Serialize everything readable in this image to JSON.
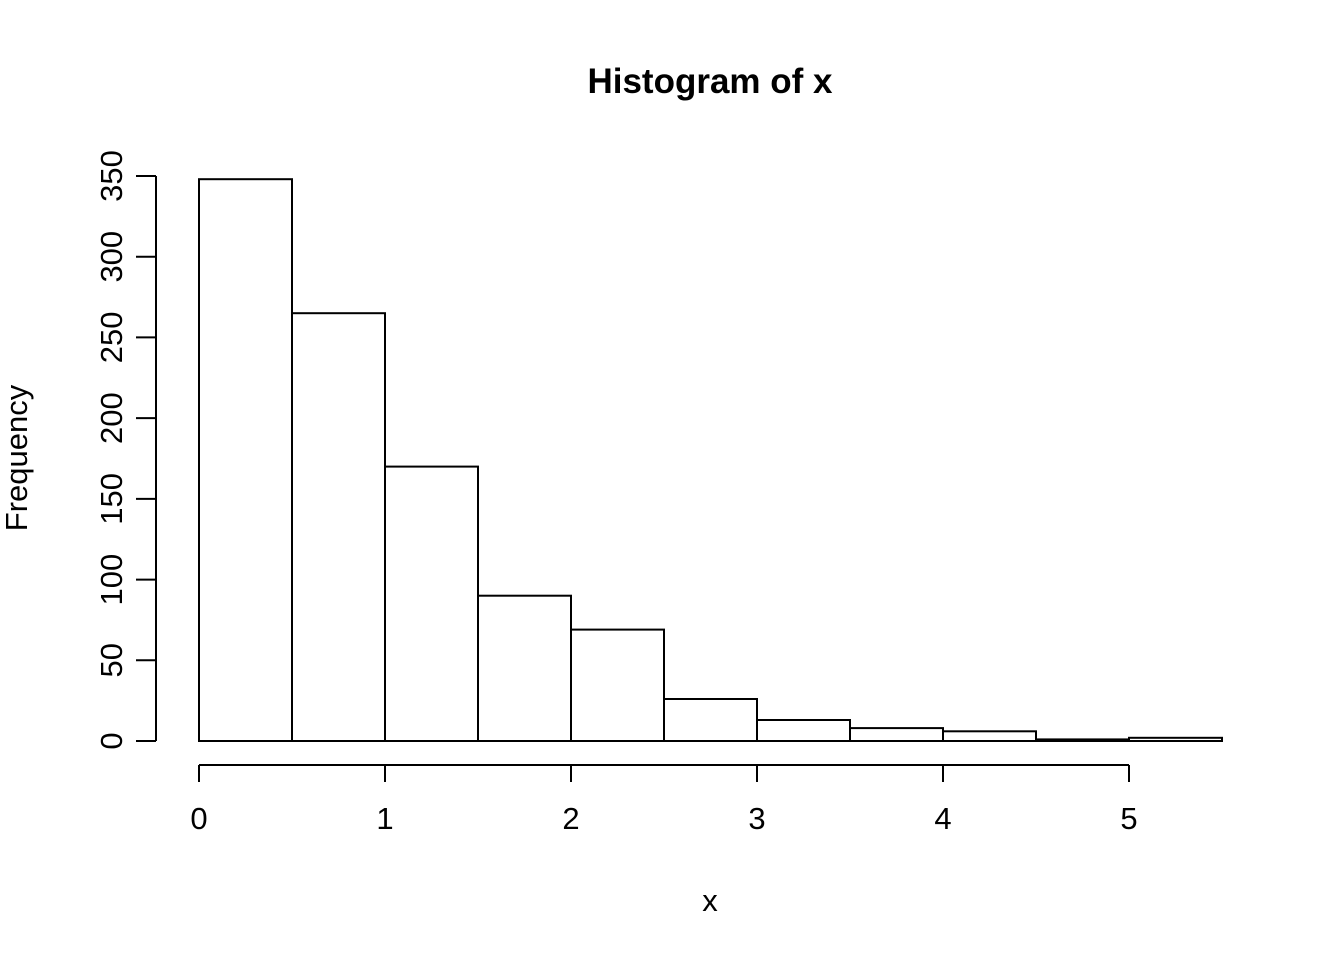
{
  "window": {
    "background": "#ffffff"
  },
  "chart_data": {
    "type": "bar",
    "subtype": "histogram",
    "title": "Histogram of x",
    "xlabel": "x",
    "ylabel": "Frequency",
    "bin_edges": [
      0,
      0.5,
      1.0,
      1.5,
      2.0,
      2.5,
      3.0,
      3.5,
      4.0,
      4.5,
      5.0,
      5.5
    ],
    "counts": [
      348,
      265,
      170,
      90,
      69,
      26,
      13,
      8,
      6,
      1,
      2
    ],
    "x_ticks": [
      0,
      1,
      2,
      3,
      4,
      5
    ],
    "y_ticks": [
      0,
      50,
      100,
      150,
      200,
      250,
      300,
      350
    ],
    "xlim": [
      0,
      5.5
    ],
    "ylim": [
      0,
      350
    ],
    "grid": false,
    "legend": false,
    "bar_fill": "#ffffff",
    "line_color": "#000000",
    "background": "#ffffff"
  }
}
